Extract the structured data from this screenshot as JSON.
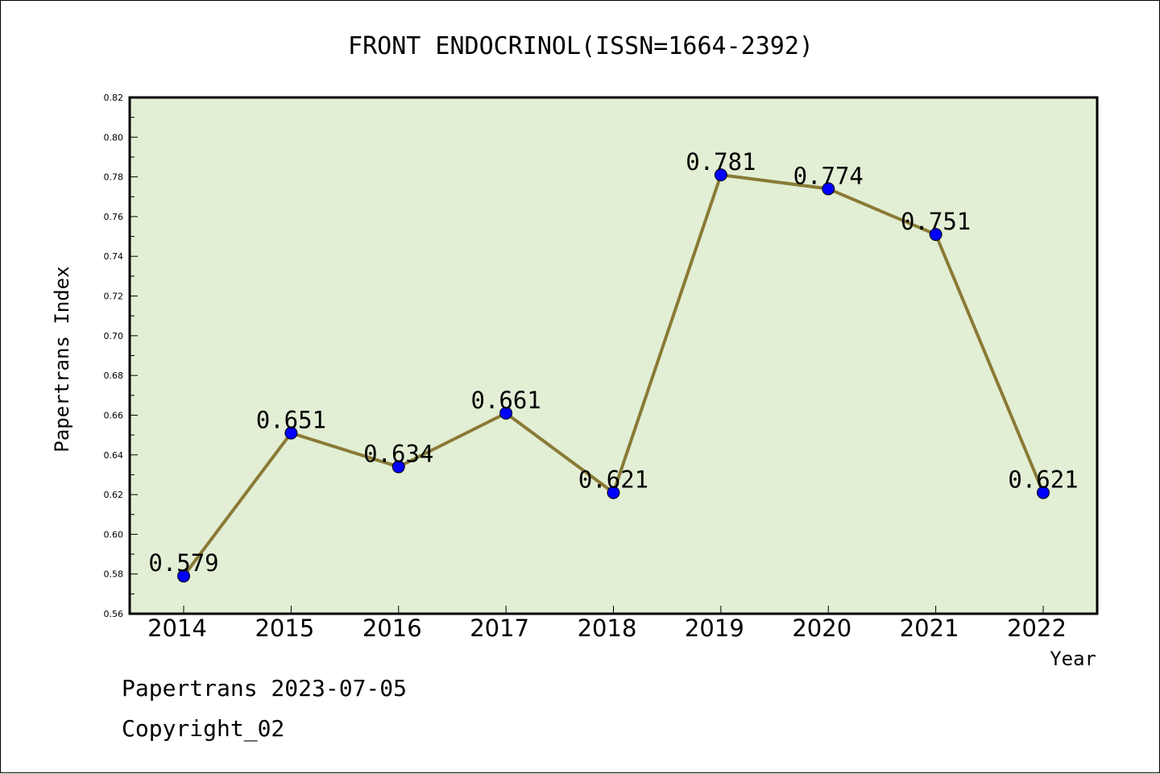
{
  "chart_data": {
    "type": "line",
    "title": "FRONT ENDOCRINOL(ISSN=1664-2392)",
    "xlabel": "Year",
    "ylabel": "Papertrans Index",
    "categories": [
      "2014",
      "2015",
      "2016",
      "2017",
      "2018",
      "2019",
      "2020",
      "2021",
      "2022"
    ],
    "values": [
      0.579,
      0.651,
      0.634,
      0.661,
      0.621,
      0.781,
      0.774,
      0.751,
      0.621
    ],
    "data_labels": [
      "0.579",
      "0.651",
      "0.634",
      "0.661",
      "0.621",
      "0.781",
      "0.774",
      "0.751",
      "0.621"
    ],
    "ylim": [
      0.56,
      0.82
    ],
    "yticks": [
      "0.56",
      "0.58",
      "0.60",
      "0.62",
      "0.64",
      "0.66",
      "0.68",
      "0.70",
      "0.72",
      "0.74",
      "0.76",
      "0.78",
      "0.80",
      "0.82"
    ],
    "grid": false,
    "legend": "none",
    "colors": {
      "plot_background": "#e2efd5",
      "line": "#8a7a36",
      "marker": "#0000ff"
    }
  },
  "footer": {
    "line1": "Papertrans 2023-07-05",
    "line2": "Copyright_02"
  }
}
